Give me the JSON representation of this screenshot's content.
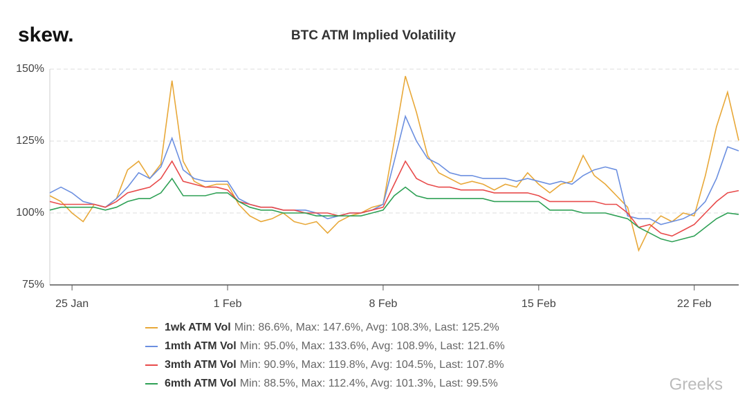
{
  "brand": "skew.",
  "watermark": "Greeks",
  "chart_data": {
    "type": "line",
    "title": "BTC ATM Implied Volatility",
    "categories": [
      null,
      null,
      "25 Jan",
      null,
      null,
      null,
      null,
      null,
      null,
      null,
      null,
      null,
      null,
      null,
      null,
      null,
      "1 Feb",
      null,
      null,
      null,
      null,
      null,
      null,
      null,
      null,
      null,
      null,
      null,
      null,
      null,
      "8 Feb",
      null,
      null,
      null,
      null,
      null,
      null,
      null,
      null,
      null,
      null,
      null,
      null,
      null,
      "15 Feb",
      null,
      null,
      null,
      null,
      null,
      null,
      null,
      null,
      null,
      null,
      null,
      null,
      null,
      "22 Feb",
      null,
      null,
      null,
      null
    ],
    "ylim": [
      75,
      150
    ],
    "yticks": [
      {
        "value": 75,
        "label": "75%"
      },
      {
        "value": 100,
        "label": "100%"
      },
      {
        "value": 125,
        "label": "125%"
      },
      {
        "value": 150,
        "label": "150%"
      }
    ],
    "grid": true,
    "series": [
      {
        "name": "1wk ATM Vol",
        "summary": "Min: 86.6%, Max: 147.6%, Avg: 108.3%, Last: 125.2%",
        "color": "#e8a838",
        "values": [
          106,
          104,
          100,
          97,
          103,
          102,
          105,
          115,
          118,
          112,
          117,
          146,
          118,
          111,
          109,
          110,
          110,
          103,
          99,
          97,
          98,
          100,
          97,
          96,
          97,
          93,
          97,
          99,
          100,
          102,
          103,
          125,
          147.6,
          135,
          120,
          114,
          112,
          110,
          111,
          110,
          108,
          110,
          109,
          114,
          110,
          107,
          110,
          111,
          120,
          113,
          110,
          106,
          102,
          87,
          95,
          99,
          97,
          100,
          99,
          113,
          130,
          142,
          125.2
        ]
      },
      {
        "name": "1mth ATM Vol",
        "summary": "Min: 95.0%, Max: 133.6%, Avg: 108.9%, Last: 121.6%",
        "color": "#6b8fe0",
        "values": [
          107,
          109,
          107,
          104,
          103,
          102,
          105,
          109,
          114,
          112,
          116,
          126,
          115,
          112,
          111,
          111,
          111,
          105,
          103,
          102,
          102,
          101,
          101,
          101,
          100,
          98,
          99,
          100,
          100,
          101,
          103,
          118,
          133.6,
          125,
          119,
          117,
          114,
          113,
          113,
          112,
          112,
          112,
          111,
          112,
          111,
          110,
          111,
          110,
          113,
          115,
          116,
          115,
          99,
          98,
          98,
          96,
          97,
          98,
          100,
          104,
          112,
          123,
          121.6
        ]
      },
      {
        "name": "3mth ATM Vol",
        "summary": "Min: 90.9%, Max: 119.8%, Avg: 104.5%, Last: 107.8%",
        "color": "#e84a4a",
        "values": [
          104,
          103,
          103,
          103,
          103,
          102,
          104,
          107,
          108,
          109,
          112,
          118,
          111,
          110,
          109,
          109,
          108,
          104,
          103,
          102,
          102,
          101,
          101,
          100,
          100,
          100,
          99,
          100,
          100,
          101,
          102,
          110,
          118,
          112,
          110,
          109,
          109,
          108,
          108,
          108,
          107,
          107,
          107,
          107,
          106,
          104,
          104,
          104,
          104,
          104,
          103,
          103,
          100,
          95,
          96,
          93,
          92,
          94,
          96,
          100,
          104,
          107,
          107.8
        ]
      },
      {
        "name": "6mth ATM Vol",
        "summary": "Min: 88.5%, Max: 112.4%, Avg: 101.3%, Last: 99.5%",
        "color": "#2ea055",
        "values": [
          101,
          102,
          102,
          102,
          102,
          101,
          102,
          104,
          105,
          105,
          107,
          112,
          106,
          106,
          106,
          107,
          107,
          104,
          102,
          101,
          101,
          100,
          100,
          100,
          99,
          99,
          99,
          99,
          99,
          100,
          101,
          106,
          109,
          106,
          105,
          105,
          105,
          105,
          105,
          105,
          104,
          104,
          104,
          104,
          104,
          101,
          101,
          101,
          100,
          100,
          100,
          99,
          98,
          95,
          93,
          91,
          90,
          91,
          92,
          95,
          98,
          100,
          99.5
        ]
      }
    ]
  }
}
